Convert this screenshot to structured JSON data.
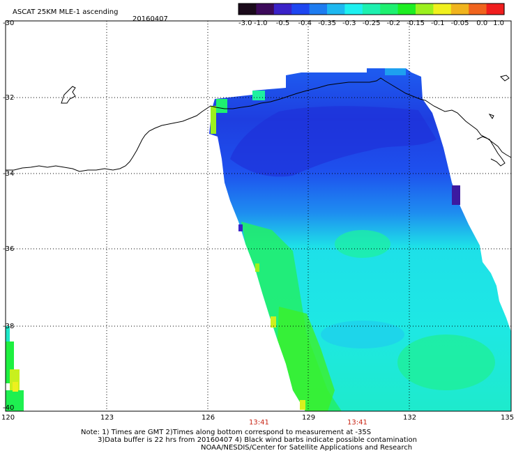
{
  "title": "ASCAT 25KM MLE-1 ascending",
  "date": "20160407",
  "colorbar": {
    "ticks": [
      "-3.0",
      "-1.0",
      "-0.5",
      "-0.4",
      "-0.35",
      "-0.3",
      "-0.25",
      "-0.2",
      "-0.15",
      "-0.1",
      "-0.05",
      "0.0",
      "1.0"
    ],
    "colors": [
      "#1a0a1a",
      "#3c0a5a",
      "#3a22c8",
      "#1e46f0",
      "#1e7cf0",
      "#1eb8f0",
      "#1ef0f0",
      "#1ef0b0",
      "#1ef070",
      "#1eee22",
      "#9cf01e",
      "#f0f01e",
      "#f0b41e",
      "#f0641e",
      "#f01e1e"
    ]
  },
  "axes": {
    "lon_labels": [
      "120",
      "123",
      "126",
      "129",
      "132",
      "135"
    ],
    "lat_labels": [
      "-30",
      "-32",
      "-34",
      "-36",
      "-38",
      "-40"
    ]
  },
  "time_labels": [
    "13:41",
    "13:41"
  ],
  "notes": {
    "line1": "Note: 1) Times are GMT 2)Times along bottom correspond to measurement at -35S",
    "line2": "3)Data buffer is 22 hrs from 20160407 4) Black wind barbs indicate possible contamination",
    "line3": "NOAA/NESDIS/Center for Satellite Applications and Research"
  }
}
